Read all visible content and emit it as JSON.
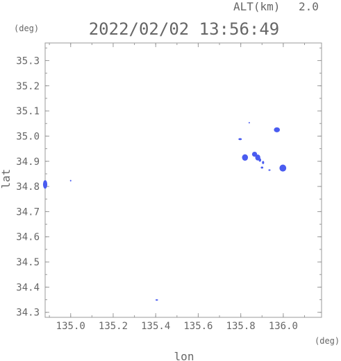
{
  "header": {
    "alt_label": "ALT(km)",
    "alt_value": "2.0",
    "timestamp": "2022/02/02 13:56:49"
  },
  "chart_data": {
    "type": "scatter",
    "title": "2022/02/02 13:56:49",
    "xlabel": "lon",
    "ylabel": "lat",
    "x_unit": "(deg)",
    "y_unit": "(deg)",
    "xlim": [
      134.88,
      136.18
    ],
    "ylim": [
      34.28,
      35.37
    ],
    "x_ticks": [
      135.0,
      135.2,
      135.4,
      135.6,
      135.8,
      136.0
    ],
    "x_tick_labels": [
      "135.0",
      "135.2",
      "135.4",
      "135.6",
      "135.8",
      "136.0"
    ],
    "y_ticks": [
      34.3,
      34.4,
      34.5,
      34.6,
      34.7,
      34.8,
      34.9,
      35.0,
      35.1,
      35.2,
      35.3
    ],
    "y_tick_labels": [
      "34.3",
      "34.4",
      "34.5",
      "34.6",
      "34.7",
      "34.8",
      "34.9",
      "35.0",
      "35.1",
      "35.2",
      "35.3"
    ],
    "grid": false,
    "colors": {
      "echo": "#4a5cf0",
      "frame": "#999999",
      "text": "#666666"
    },
    "series": [
      {
        "values": [
          {
            "x": 134.88,
            "y": 34.808,
            "rx": 0.01,
            "ry": 0.017
          },
          {
            "x": 135.0,
            "y": 34.823,
            "rx": 0.003,
            "ry": 0.003
          },
          {
            "x": 135.405,
            "y": 34.349,
            "rx": 0.006,
            "ry": 0.002
          },
          {
            "x": 135.84,
            "y": 35.053,
            "rx": 0.002,
            "ry": 0.002
          },
          {
            "x": 135.97,
            "y": 35.025,
            "rx": 0.014,
            "ry": 0.01
          },
          {
            "x": 135.797,
            "y": 34.988,
            "rx": 0.008,
            "ry": 0.004
          },
          {
            "x": 135.82,
            "y": 34.915,
            "rx": 0.014,
            "ry": 0.013
          },
          {
            "x": 135.865,
            "y": 34.928,
            "rx": 0.012,
            "ry": 0.01
          },
          {
            "x": 135.88,
            "y": 34.915,
            "rx": 0.012,
            "ry": 0.012
          },
          {
            "x": 135.89,
            "y": 34.905,
            "rx": 0.006,
            "ry": 0.007
          },
          {
            "x": 135.905,
            "y": 34.895,
            "rx": 0.005,
            "ry": 0.006
          },
          {
            "x": 135.9,
            "y": 34.875,
            "rx": 0.006,
            "ry": 0.004
          },
          {
            "x": 135.935,
            "y": 34.865,
            "rx": 0.005,
            "ry": 0.003
          },
          {
            "x": 135.998,
            "y": 34.873,
            "rx": 0.016,
            "ry": 0.014
          }
        ]
      }
    ]
  }
}
